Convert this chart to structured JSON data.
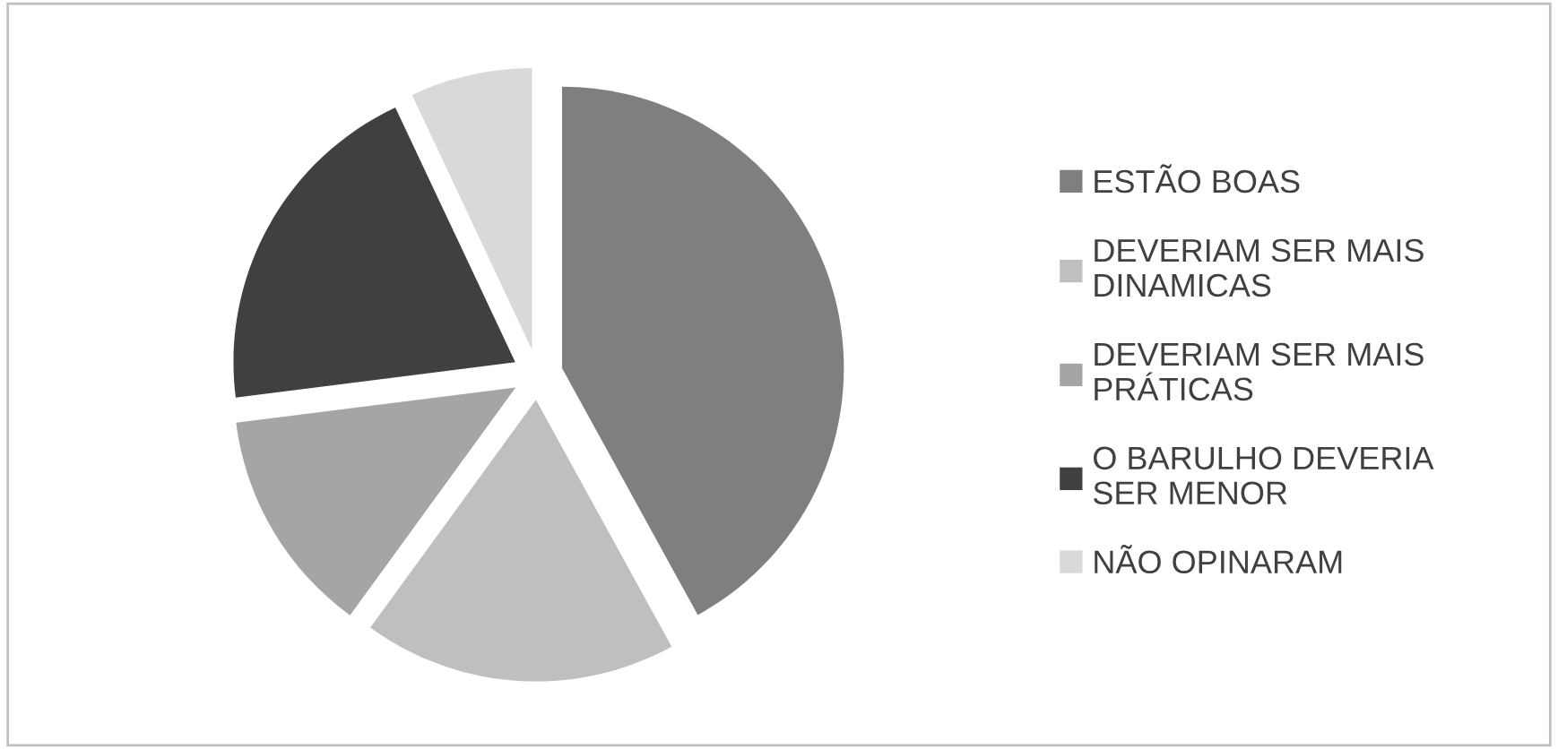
{
  "chart_data": {
    "type": "pie",
    "categories": [
      "ESTÃO BOAS",
      "DEVERIAM SER MAIS DINAMICAS",
      "DEVERIAM SER MAIS PRÁTICAS",
      "O BARULHO DEVERIA SER MENOR",
      "NÃO OPINARAM"
    ],
    "values": [
      42,
      18,
      13,
      20,
      7
    ],
    "colors": [
      "#7f7f80",
      "#bfbfc1",
      "#a5a5a5",
      "#404042",
      "#d9d9d9"
    ],
    "legend": "right"
  }
}
